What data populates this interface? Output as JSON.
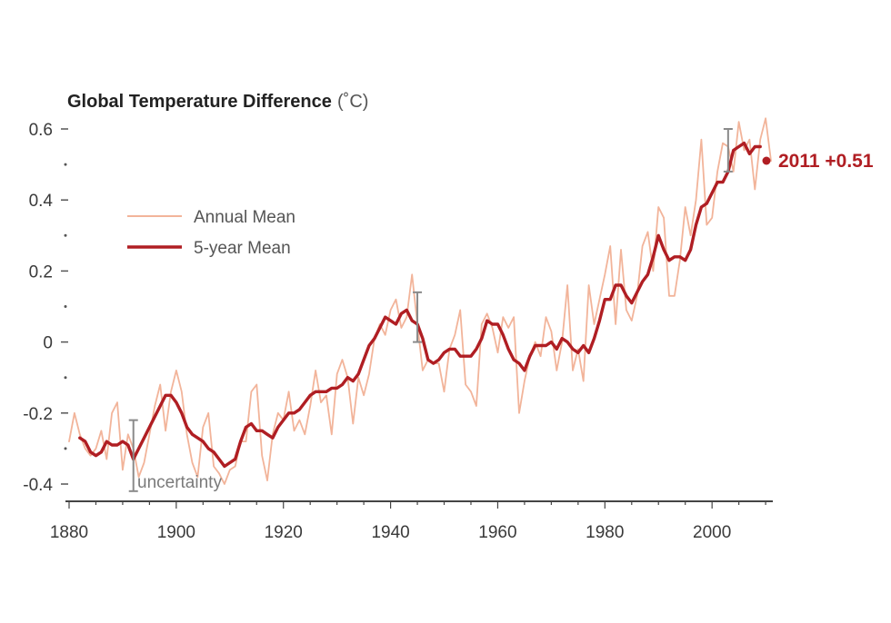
{
  "chart_data": {
    "type": "line",
    "title": "Global Temperature Difference",
    "unit": "(˚C)",
    "xlim": [
      1880,
      2012
    ],
    "ylim": [
      -0.42,
      0.62
    ],
    "x_ticks": [
      1880,
      1900,
      1920,
      1940,
      1960,
      1980,
      2000
    ],
    "y_ticks": [
      {
        "value": 0.6,
        "label": "0.6"
      },
      {
        "value": 0.4,
        "label": "0.4"
      },
      {
        "value": 0.2,
        "label": "0.2"
      },
      {
        "value": 0,
        "label": "0"
      },
      {
        "value": -0.2,
        "label": "-0.2"
      },
      {
        "value": -0.4,
        "label": "-0.4"
      }
    ],
    "y_minor_ticks": [
      0.5,
      0.3,
      0.1,
      -0.1,
      -0.3
    ],
    "legend": [
      {
        "label": "Annual Mean",
        "color": "#f2b49a"
      },
      {
        "label": "5-year Mean",
        "color": "#b01e23"
      }
    ],
    "annual_mean": {
      "name": "Annual Mean",
      "color": "#f2b49a",
      "x": [
        1880,
        1881,
        1882,
        1883,
        1884,
        1885,
        1886,
        1887,
        1888,
        1889,
        1890,
        1891,
        1892,
        1893,
        1894,
        1895,
        1896,
        1897,
        1898,
        1899,
        1900,
        1901,
        1902,
        1903,
        1904,
        1905,
        1906,
        1907,
        1908,
        1909,
        1910,
        1911,
        1912,
        1913,
        1914,
        1915,
        1916,
        1917,
        1918,
        1919,
        1920,
        1921,
        1922,
        1923,
        1924,
        1925,
        1926,
        1927,
        1928,
        1929,
        1930,
        1931,
        1932,
        1933,
        1934,
        1935,
        1936,
        1937,
        1938,
        1939,
        1940,
        1941,
        1942,
        1943,
        1944,
        1945,
        1946,
        1947,
        1948,
        1949,
        1950,
        1951,
        1952,
        1953,
        1954,
        1955,
        1956,
        1957,
        1958,
        1959,
        1960,
        1961,
        1962,
        1963,
        1964,
        1965,
        1966,
        1967,
        1968,
        1969,
        1970,
        1971,
        1972,
        1973,
        1974,
        1975,
        1976,
        1977,
        1978,
        1979,
        1980,
        1981,
        1982,
        1983,
        1984,
        1985,
        1986,
        1987,
        1988,
        1989,
        1990,
        1991,
        1992,
        1993,
        1994,
        1995,
        1996,
        1997,
        1998,
        1999,
        2000,
        2001,
        2002,
        2003,
        2004,
        2005,
        2006,
        2007,
        2008,
        2009,
        2010,
        2011
      ],
      "values": [
        -0.28,
        -0.2,
        -0.26,
        -0.3,
        -0.32,
        -0.3,
        -0.25,
        -0.33,
        -0.2,
        -0.17,
        -0.36,
        -0.26,
        -0.3,
        -0.38,
        -0.34,
        -0.26,
        -0.18,
        -0.12,
        -0.25,
        -0.14,
        -0.08,
        -0.14,
        -0.26,
        -0.34,
        -0.38,
        -0.24,
        -0.2,
        -0.35,
        -0.37,
        -0.4,
        -0.36,
        -0.35,
        -0.28,
        -0.28,
        -0.14,
        -0.12,
        -0.32,
        -0.39,
        -0.26,
        -0.2,
        -0.22,
        -0.14,
        -0.25,
        -0.22,
        -0.26,
        -0.18,
        -0.08,
        -0.17,
        -0.15,
        -0.26,
        -0.09,
        -0.05,
        -0.1,
        -0.23,
        -0.1,
        -0.15,
        -0.09,
        0.01,
        0.05,
        0.02,
        0.09,
        0.12,
        0.04,
        0.07,
        0.19,
        0.05,
        -0.08,
        -0.05,
        -0.06,
        -0.06,
        -0.14,
        -0.02,
        0.02,
        0.09,
        -0.12,
        -0.14,
        -0.18,
        0.05,
        0.08,
        0.04,
        -0.03,
        0.07,
        0.04,
        0.07,
        -0.2,
        -0.11,
        -0.04,
        0,
        -0.04,
        0.07,
        0.03,
        -0.08,
        0,
        0.16,
        -0.08,
        -0.02,
        -0.11,
        0.16,
        0.05,
        0.12,
        0.19,
        0.27,
        0.05,
        0.26,
        0.09,
        0.06,
        0.13,
        0.27,
        0.31,
        0.2,
        0.38,
        0.35,
        0.13,
        0.13,
        0.23,
        0.38,
        0.3,
        0.4,
        0.57,
        0.33,
        0.35,
        0.48,
        0.56,
        0.55,
        0.48,
        0.62,
        0.54,
        0.57,
        0.43,
        0.57,
        0.63,
        0.51
      ]
    },
    "five_year_mean": {
      "name": "5-year Mean",
      "color": "#b01e23",
      "x": [
        1882,
        1883,
        1884,
        1885,
        1886,
        1887,
        1888,
        1889,
        1890,
        1891,
        1892,
        1893,
        1894,
        1895,
        1896,
        1897,
        1898,
        1899,
        1900,
        1901,
        1902,
        1903,
        1904,
        1905,
        1906,
        1907,
        1908,
        1909,
        1910,
        1911,
        1912,
        1913,
        1914,
        1915,
        1916,
        1917,
        1918,
        1919,
        1920,
        1921,
        1922,
        1923,
        1924,
        1925,
        1926,
        1927,
        1928,
        1929,
        1930,
        1931,
        1932,
        1933,
        1934,
        1935,
        1936,
        1937,
        1938,
        1939,
        1940,
        1941,
        1942,
        1943,
        1944,
        1945,
        1946,
        1947,
        1948,
        1949,
        1950,
        1951,
        1952,
        1953,
        1954,
        1955,
        1956,
        1957,
        1958,
        1959,
        1960,
        1961,
        1962,
        1963,
        1964,
        1965,
        1966,
        1967,
        1968,
        1969,
        1970,
        1971,
        1972,
        1973,
        1974,
        1975,
        1976,
        1977,
        1978,
        1979,
        1980,
        1981,
        1982,
        1983,
        1984,
        1985,
        1986,
        1987,
        1988,
        1989,
        1990,
        1991,
        1992,
        1993,
        1994,
        1995,
        1996,
        1997,
        1998,
        1999,
        2000,
        2001,
        2002,
        2003,
        2004,
        2005,
        2006,
        2007,
        2008,
        2009
      ],
      "values": [
        -0.27,
        -0.28,
        -0.31,
        -0.32,
        -0.31,
        -0.28,
        -0.29,
        -0.29,
        -0.28,
        -0.29,
        -0.33,
        -0.3,
        -0.27,
        -0.24,
        -0.21,
        -0.18,
        -0.15,
        -0.15,
        -0.17,
        -0.2,
        -0.24,
        -0.26,
        -0.27,
        -0.28,
        -0.3,
        -0.31,
        -0.33,
        -0.35,
        -0.34,
        -0.33,
        -0.28,
        -0.24,
        -0.23,
        -0.25,
        -0.25,
        -0.26,
        -0.27,
        -0.24,
        -0.22,
        -0.2,
        -0.2,
        -0.19,
        -0.17,
        -0.15,
        -0.14,
        -0.14,
        -0.14,
        -0.13,
        -0.13,
        -0.12,
        -0.1,
        -0.11,
        -0.09,
        -0.05,
        -0.01,
        0.01,
        0.04,
        0.07,
        0.06,
        0.05,
        0.08,
        0.09,
        0.06,
        0.05,
        0.01,
        -0.05,
        -0.06,
        -0.05,
        -0.03,
        -0.02,
        -0.02,
        -0.04,
        -0.04,
        -0.04,
        -0.02,
        0.01,
        0.06,
        0.05,
        0.05,
        0.02,
        -0.02,
        -0.05,
        -0.06,
        -0.08,
        -0.04,
        -0.01,
        -0.01,
        -0.01,
        0,
        -0.02,
        0.01,
        0,
        -0.02,
        -0.03,
        -0.01,
        -0.03,
        0.01,
        0.06,
        0.12,
        0.12,
        0.16,
        0.16,
        0.13,
        0.11,
        0.14,
        0.17,
        0.19,
        0.24,
        0.3,
        0.26,
        0.23,
        0.24,
        0.24,
        0.23,
        0.26,
        0.33,
        0.38,
        0.39,
        0.42,
        0.45,
        0.45,
        0.48,
        0.54,
        0.55,
        0.56,
        0.53,
        0.55,
        0.55
      ]
    },
    "uncertainty_bars": [
      {
        "x": 1892,
        "low": -0.42,
        "high": -0.22
      },
      {
        "x": 1945,
        "low": 0.0,
        "high": 0.14
      },
      {
        "x": 2003,
        "low": 0.48,
        "high": 0.6
      }
    ],
    "annotations": [
      {
        "text": "uncertainty",
        "x": 1893,
        "y": -0.39
      },
      {
        "text": "2011 +0.51",
        "x": 2011,
        "y": 0.51
      }
    ]
  }
}
